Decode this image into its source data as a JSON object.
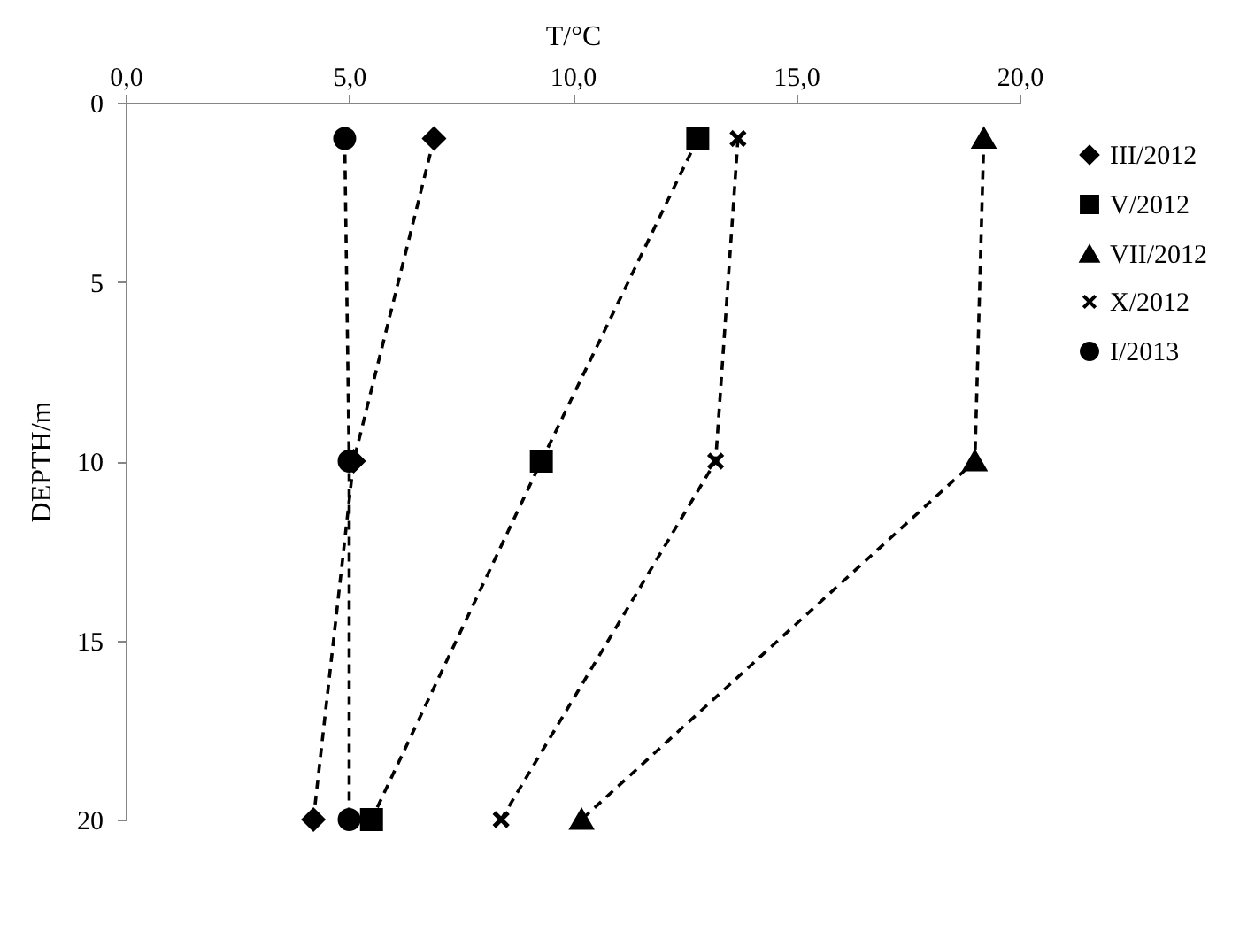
{
  "chart_data": {
    "type": "line",
    "xlabel": "T/°C",
    "ylabel": "DEPTH/m",
    "xlim": [
      0,
      20
    ],
    "xticks": [
      {
        "value": 0,
        "label": "0,0"
      },
      {
        "value": 5,
        "label": "5,0"
      },
      {
        "value": 10,
        "label": "10,0"
      },
      {
        "value": 15,
        "label": "15,0"
      },
      {
        "value": 20,
        "label": "20,0"
      }
    ],
    "ylim": [
      20,
      0
    ],
    "yticks": [
      0,
      5,
      10,
      15,
      20
    ],
    "grid": false,
    "legend": "right",
    "line_style": "dashed",
    "series": [
      {
        "name": "III/2012",
        "color": "#000000",
        "marker": "diamond",
        "x": [
          6.9,
          5.1,
          4.2
        ],
        "values": [
          1,
          10,
          20
        ]
      },
      {
        "name": "V/2012",
        "color": "#000000",
        "marker": "square",
        "x": [
          12.8,
          9.3,
          5.5
        ],
        "values": [
          1,
          10,
          20
        ]
      },
      {
        "name": "VII/2012",
        "color": "#000000",
        "marker": "triangle",
        "x": [
          19.2,
          19.0,
          10.2
        ],
        "values": [
          1,
          10,
          20
        ]
      },
      {
        "name": "X/2012",
        "color": "#000000",
        "marker": "cross",
        "x": [
          13.7,
          13.2,
          8.4
        ],
        "values": [
          1,
          10,
          20
        ]
      },
      {
        "name": "I/2013",
        "color": "#000000",
        "marker": "circle",
        "x": [
          4.9,
          5.0,
          5.0
        ],
        "values": [
          1,
          10,
          20
        ]
      }
    ]
  }
}
